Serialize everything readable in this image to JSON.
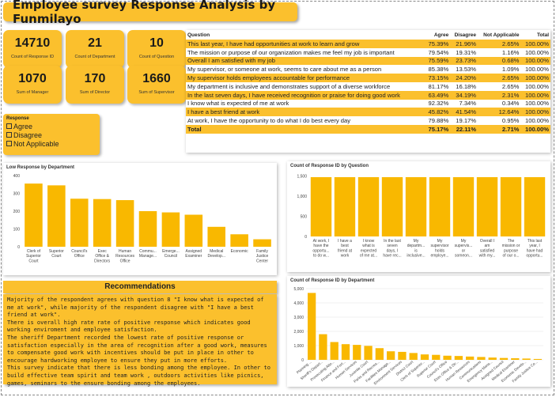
{
  "title": "Employee survey Response Analysis by Funmilayo",
  "kpis": [
    {
      "value": "14710",
      "label": "Count of Response ID"
    },
    {
      "value": "21",
      "label": "Count of Department"
    },
    {
      "value": "10",
      "label": "Count of Question"
    },
    {
      "value": "1070",
      "label": "Sum of Manager"
    },
    {
      "value": "170",
      "label": "Sum of Director"
    },
    {
      "value": "1660",
      "label": "Sum of Supervisor"
    }
  ],
  "slicer": {
    "heading": "Response",
    "options": [
      "Agree",
      "Disagree",
      "Not Applicable"
    ]
  },
  "table": {
    "headers": [
      "Question",
      "Agree",
      "Disagree",
      "Not Applicable",
      "Total"
    ],
    "rows": [
      [
        "This last year, I have had opportunities at work to learn and grow",
        "75.39%",
        "21.96%",
        "2.65%",
        "100.00%"
      ],
      [
        "The mission or purpose of our organization makes me feel my job is important",
        "79.54%",
        "19.31%",
        "1.16%",
        "100.00%"
      ],
      [
        "Overall I am satisfied with my job",
        "75.59%",
        "23.73%",
        "0.68%",
        "100.00%"
      ],
      [
        "My supervisor, or someone at work, seems to care about me as a person",
        "85.38%",
        "13.53%",
        "1.09%",
        "100.00%"
      ],
      [
        "My supervisor holds employees accountable for performance",
        "73.15%",
        "24.20%",
        "2.65%",
        "100.00%"
      ],
      [
        "My department is inclusive and demonstrates support of a diverse workforce",
        "81.17%",
        "16.18%",
        "2.65%",
        "100.00%"
      ],
      [
        "In the last seven days, I have received recognition or praise for doing good work",
        "63.49%",
        "34.19%",
        "2.31%",
        "100.00%"
      ],
      [
        "I know what is expected of me at work",
        "92.32%",
        "7.34%",
        "0.34%",
        "100.00%"
      ],
      [
        "I have a best friend at work",
        "45.82%",
        "41.54%",
        "12.64%",
        "100.00%"
      ],
      [
        "At work, I have the opportunity to do what I do best every day",
        "79.88%",
        "19.17%",
        "0.95%",
        "100.00%"
      ]
    ],
    "total": [
      "Total",
      "75.17%",
      "22.11%",
      "2.71%",
      "100.00%"
    ]
  },
  "colors": {
    "accent": "#fbc02d",
    "bar": "#f9b800"
  },
  "chart_data": [
    {
      "type": "bar",
      "title": "Low Response by Department",
      "categories": [
        [
          "Clerk of",
          "Superior",
          "Court"
        ],
        [
          "Superior",
          "Court"
        ],
        [
          "Council's",
          "Office"
        ],
        [
          "Exec",
          "Office &",
          "Directors"
        ],
        [
          "Human",
          "Resources",
          "Office"
        ],
        [
          "Commu...",
          "Manage..."
        ],
        [
          "Emerge...",
          "Council"
        ],
        [
          "Assigned",
          "Examiner"
        ],
        [
          "Medical",
          "Develop..."
        ],
        [
          "Economic"
        ],
        [
          "Family",
          "Justice",
          "Center"
        ]
      ],
      "values": [
        355,
        345,
        270,
        268,
        262,
        200,
        193,
        180,
        112,
        70,
        42
      ],
      "ylim": [
        0,
        400
      ],
      "yticks": [
        0,
        100,
        200,
        300,
        400
      ]
    },
    {
      "type": "bar",
      "title": "Count of Response ID by Question",
      "categories": [
        [
          "At work, I",
          "have the",
          "opportu...",
          "to do w..."
        ],
        [
          "I have a",
          "best",
          "friend at",
          "work"
        ],
        [
          "I know",
          "what is",
          "expected",
          "of me at..."
        ],
        [
          "In the last",
          "seven",
          "days, I",
          "have rec..."
        ],
        [
          "My",
          "departm...",
          "is",
          "inclusive..."
        ],
        [
          "My",
          "supervisor",
          "holds",
          "employe..."
        ],
        [
          "My",
          "supervis...",
          "or",
          "someon..."
        ],
        [
          "Overall I",
          "am",
          "satisfied",
          "with my..."
        ],
        [
          "The",
          "mission or",
          "purpose",
          "of our o..."
        ],
        [
          "This last",
          "year, I",
          "have had",
          "opportu..."
        ]
      ],
      "values": [
        1471,
        1471,
        1471,
        1471,
        1471,
        1471,
        1471,
        1471,
        1471,
        1471
      ],
      "ylim": [
        0,
        1550
      ],
      "yticks": [
        0,
        500,
        1000,
        1500
      ],
      "ytick_labels": [
        "0",
        "500",
        "1,000",
        "1,500"
      ]
    },
    {
      "type": "bar",
      "title": "Count of Response ID by Department",
      "categories": [
        "Planning ...",
        "Sheriff's Depart...",
        "Prosecuting Atto...",
        "Finance and Fort...",
        "Human Services",
        "Juvenile Court",
        "Parks and Recrea...",
        "Facilities Manage...",
        "Environment Services",
        "District Court",
        "Clerk of Superior...",
        "Superior Court",
        "Council's Office",
        "Exec Office & Dir...",
        "Human Resources",
        "Communications",
        "Emergency Mana...",
        "Assigned Council",
        "Medical Examiner",
        "Economic Develo...",
        "Family Justice Ce..."
      ],
      "values": [
        4700,
        1800,
        1250,
        1100,
        1050,
        980,
        820,
        600,
        560,
        480,
        380,
        350,
        290,
        270,
        230,
        200,
        160,
        130,
        110,
        90,
        60
      ],
      "ylim": [
        0,
        5000
      ],
      "yticks": [
        0,
        1000,
        2000,
        3000,
        4000,
        5000
      ],
      "ytick_labels": [
        "0",
        "1,000",
        "2,000",
        "3,000",
        "4,000",
        "5,000"
      ]
    }
  ],
  "recommendations": {
    "title": "Recommendations",
    "paragraphs": [
      "Majority of the respondent agrees with question 8 \"I know what is expected of me at work\", while majority of the respondent disagree with \"I have a best friend at work\".",
      "There is overall high rate rate of positive response which indicates good working enviroment and employee satisfaction.",
      "The sheriff Department recorded the lowest rate of positive response or satisfaction especially in the area of recognition after a good work, measures to compensate good work with incentives should be put in place in other to encourage hardworking employee to ensure they put in more efforts.",
      "This survey indicate that there is less bonding among the employee. In other to build effective team spirit and team work , outdoors activities like picnics, games, seminars to the ensure bonding among the employees."
    ]
  }
}
